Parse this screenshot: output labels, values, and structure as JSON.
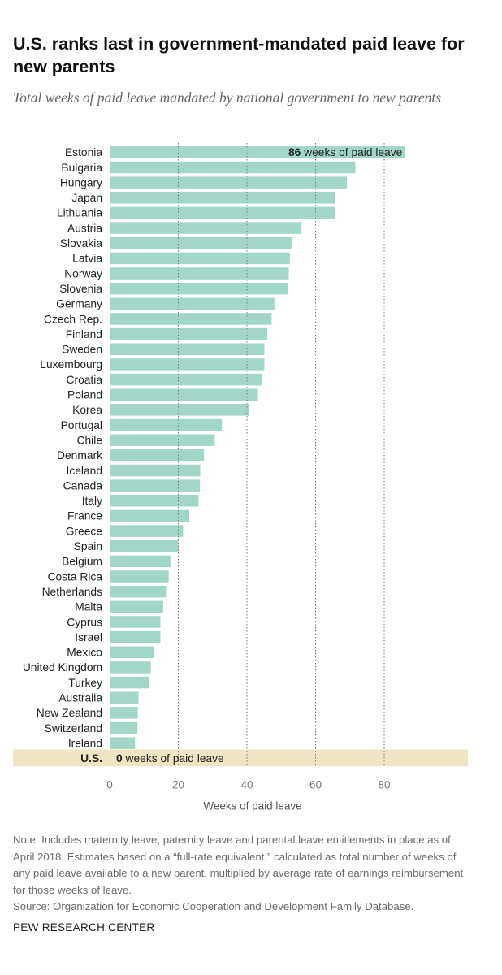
{
  "title": "U.S. ranks last in government-mandated paid leave for new parents",
  "subtitle": "Total weeks of paid leave mandated by national government to new parents",
  "colors": {
    "bar": "#a1d6c8",
    "highlight_band": "#f0e5c2",
    "grid": "#777777"
  },
  "chart_data": {
    "type": "bar",
    "orientation": "horizontal",
    "xlabel": "Weeks of paid leave",
    "ylabel": "",
    "xlim": [
      0,
      104
    ],
    "xticks": [
      0,
      20,
      40,
      60,
      80
    ],
    "grid": "dotted vertical at 20, 40, 60, 80",
    "categories": [
      "Estonia",
      "Bulgaria",
      "Hungary",
      "Japan",
      "Lithuania",
      "Austria",
      "Slovakia",
      "Latvia",
      "Norway",
      "Slovenia",
      "Germany",
      "Czech Rep.",
      "Finland",
      "Sweden",
      "Luxembourg",
      "Croatia",
      "Poland",
      "Korea",
      "Portugal",
      "Chile",
      "Denmark",
      "Iceland",
      "Canada",
      "Italy",
      "France",
      "Greece",
      "Spain",
      "Belgium",
      "Costa Rica",
      "Netherlands",
      "Malta",
      "Cyprus",
      "Israel",
      "Mexico",
      "United Kingdom",
      "Turkey",
      "Australia",
      "New Zealand",
      "Switzerland",
      "Ireland",
      "U.S."
    ],
    "values": [
      86,
      71.6,
      69.1,
      65.7,
      65.6,
      55.9,
      53,
      52.5,
      52.2,
      52,
      48,
      47.2,
      45.9,
      45.1,
      45.1,
      44.4,
      43.2,
      40.6,
      32.7,
      30.6,
      27.5,
      26.4,
      26.3,
      25.9,
      23.2,
      21.4,
      20,
      17.7,
      17.2,
      16.4,
      15.6,
      14.8,
      14.8,
      12.8,
      12,
      11.6,
      8.4,
      8.2,
      8.1,
      7.4,
      0
    ],
    "highlight": "U.S.",
    "annotations": [
      {
        "category": "Estonia",
        "value_text": "86",
        "suffix": " weeks of paid leave"
      },
      {
        "category": "U.S.",
        "value_text": "0",
        "suffix": " weeks of paid leave"
      }
    ]
  },
  "note": "Note: Includes maternity leave, paternity leave and parental leave entitlements in place as of April 2018. Estimates based on a “full-rate equivalent,” calculated as total number of weeks of any paid leave available to a new parent, multiplied by average rate of earnings reimbursement for those weeks of leave.",
  "source": "Source: Organization for Economic Cooperation and Development Family Database.",
  "footer": "PEW RESEARCH CENTER"
}
